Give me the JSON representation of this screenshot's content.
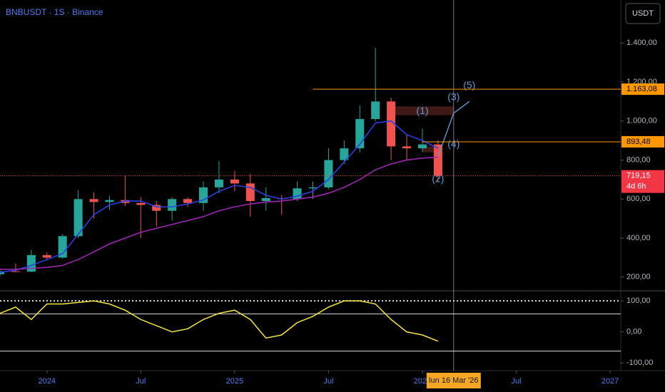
{
  "chart_data": [
    {
      "type": "candlestick",
      "title": "BNBUSDT · 1S · Binance",
      "currency": "USDT",
      "x": [
        "2023-10",
        "2023-11",
        "2023-12",
        "2024-01",
        "2024-02",
        "2024-03",
        "2024-04",
        "2024-05",
        "2024-06",
        "2024-07",
        "2024-08",
        "2024-09",
        "2024-10",
        "2024-11",
        "2024-12",
        "2025-01",
        "2025-02",
        "2025-03",
        "2025-04",
        "2025-05",
        "2025-06",
        "2025-07",
        "2025-08",
        "2025-09",
        "2025-10",
        "2025-11",
        "2025-12",
        "2026-01",
        "2026-02"
      ],
      "open": [
        215,
        230,
        228,
        313,
        300,
        410,
        600,
        585,
        595,
        580,
        570,
        540,
        600,
        580,
        660,
        700,
        680,
        590,
        605,
        600,
        655,
        660,
        800,
        860,
        1010,
        1100,
        870,
        860,
        880
      ],
      "high": [
        240,
        270,
        340,
        325,
        420,
        645,
        635,
        615,
        720,
        610,
        590,
        610,
        610,
        690,
        795,
        745,
        730,
        660,
        620,
        690,
        690,
        860,
        900,
        1080,
        1375,
        1120,
        930,
        960,
        900
      ],
      "low": [
        205,
        225,
        225,
        285,
        295,
        400,
        500,
        545,
        565,
        400,
        460,
        490,
        560,
        540,
        630,
        640,
        510,
        540,
        520,
        590,
        600,
        650,
        780,
        840,
        1000,
        800,
        800,
        840,
        690
      ],
      "close": [
        230,
        228,
        313,
        300,
        410,
        600,
        585,
        595,
        580,
        570,
        540,
        600,
        580,
        660,
        700,
        680,
        590,
        605,
        600,
        655,
        660,
        800,
        860,
        1010,
        1100,
        870,
        860,
        880,
        719.15
      ],
      "up_color": "#26a69a",
      "down_color": "#ef5350",
      "moving_averages": [
        {
          "color": "#2a3fe0",
          "values": [
            225,
            235,
            260,
            290,
            320,
            420,
            520,
            570,
            590,
            590,
            560,
            560,
            575,
            595,
            640,
            670,
            660,
            620,
            600,
            615,
            640,
            700,
            790,
            880,
            990,
            1000,
            930,
            900,
            860
          ]
        },
        {
          "color": "#9c27b0",
          "values": [
            240,
            240,
            245,
            250,
            260,
            290,
            330,
            370,
            400,
            430,
            450,
            470,
            490,
            510,
            540,
            560,
            575,
            585,
            590,
            600,
            610,
            630,
            660,
            700,
            750,
            780,
            800,
            810,
            815
          ]
        }
      ],
      "xlim": [
        "2023-10",
        "2027-02"
      ],
      "xticks": [
        {
          "value": "2024-01",
          "label": "2024"
        },
        {
          "value": "2024-07",
          "label": "Jul"
        },
        {
          "value": "2025-01",
          "label": "2025"
        },
        {
          "value": "2025-07",
          "label": "Jul"
        },
        {
          "value": "2026-01",
          "label": "2026"
        },
        {
          "value": "2026-07",
          "label": "Jul"
        },
        {
          "value": "2027-01",
          "label": "2027"
        }
      ],
      "ylim": [
        130,
        1620
      ],
      "yticks": [
        {
          "value": 200,
          "label": "200,00"
        },
        {
          "value": 400,
          "label": "400,00"
        },
        {
          "value": 600,
          "label": "600,00"
        },
        {
          "value": 800,
          "label": "800,00"
        },
        {
          "value": 1000,
          "label": "1.000,00"
        },
        {
          "value": 1200,
          "label": "1.200,00"
        },
        {
          "value": 1400,
          "label": "1.400,00"
        }
      ],
      "price_levels": [
        {
          "value": 1163.08,
          "label": "1.163,08",
          "color": "#ff9800",
          "from": "2025-06"
        },
        {
          "value": 893.48,
          "label": "893,48",
          "color": "#ff9800",
          "from": "2026-01"
        },
        {
          "value": 719.15,
          "label": "719,15",
          "color": "#f23645",
          "countdown": "4d 6h"
        }
      ],
      "zones": [
        {
          "from": "2025-11",
          "to": "2026-03",
          "low": 1030,
          "high": 1075
        },
        {
          "from": "2026-01",
          "to": "2026-02",
          "low": 840,
          "high": 870
        }
      ],
      "projection": {
        "color": "#5b9bd5",
        "x": [
          "2026-02",
          "2026-03",
          "2026-04"
        ],
        "values": [
          820,
          1040,
          1100
        ]
      },
      "annotations": [
        {
          "text": "(1)",
          "x": "2026-01",
          "y": 1050
        },
        {
          "text": "(2)",
          "x": "2026-02",
          "y": 700
        },
        {
          "text": "(3)",
          "x": "2026-03",
          "y": 1120
        },
        {
          "text": "(4)",
          "x": "2026-03",
          "y": 880
        },
        {
          "text": "(5)",
          "x": "2026-04",
          "y": 1180
        }
      ],
      "crosshair": {
        "x": "2026-03",
        "label": "lun 16 Mar '26"
      }
    },
    {
      "type": "line",
      "color": "#f5e642",
      "x": [
        "2023-10",
        "2023-11",
        "2023-12",
        "2024-01",
        "2024-02",
        "2024-03",
        "2024-04",
        "2024-05",
        "2024-06",
        "2024-07",
        "2024-08",
        "2024-09",
        "2024-10",
        "2024-11",
        "2024-12",
        "2025-01",
        "2025-02",
        "2025-03",
        "2025-04",
        "2025-05",
        "2025-06",
        "2025-07",
        "2025-08",
        "2025-09",
        "2025-10",
        "2025-11",
        "2025-12",
        "2026-01",
        "2026-02"
      ],
      "values": [
        60,
        80,
        40,
        90,
        90,
        95,
        100,
        90,
        70,
        40,
        20,
        0,
        10,
        40,
        60,
        70,
        40,
        -20,
        -10,
        30,
        50,
        80,
        100,
        100,
        90,
        40,
        0,
        -10,
        -30
      ],
      "xlim": [
        "2023-10",
        "2027-02"
      ],
      "ylim": [
        -125,
        128
      ],
      "yticks": [
        {
          "value": 100,
          "label": "100,00"
        },
        {
          "value": 0,
          "label": "0,00"
        },
        {
          "value": -100,
          "label": "-100,00"
        }
      ],
      "levels": [
        {
          "value": 100,
          "dashed": true
        },
        {
          "value": 58,
          "dashed": false
        },
        {
          "value": -62,
          "dashed": false
        }
      ]
    }
  ]
}
